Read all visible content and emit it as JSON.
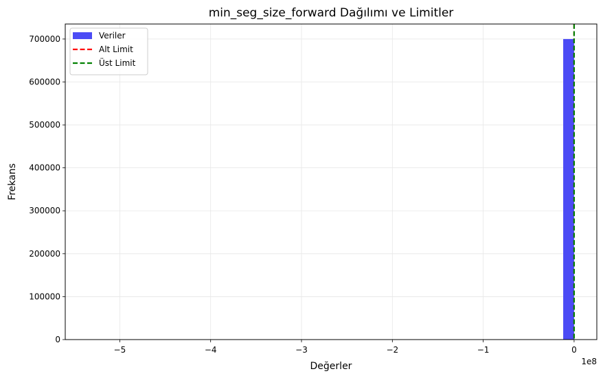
{
  "chart_data": {
    "type": "bar",
    "title": "min_seg_size_forward Dağılımı ve Limitler",
    "xlabel": "Değerler",
    "ylabel": "Frekans",
    "x_offset_label": "1e8",
    "xlim": [
      -5.6,
      0.25
    ],
    "ylim": [
      0,
      735000
    ],
    "x_ticks": [
      -5,
      -4,
      -3,
      -2,
      -1,
      0
    ],
    "x_tick_labels": [
      "−5",
      "−4",
      "−3",
      "−2",
      "−1",
      "0"
    ],
    "y_ticks": [
      0,
      100000,
      200000,
      300000,
      400000,
      500000,
      600000,
      700000
    ],
    "y_tick_labels": [
      "0",
      "100000",
      "200000",
      "300000",
      "400000",
      "500000",
      "600000",
      "700000"
    ],
    "grid": true,
    "bars": [
      {
        "x0": -0.12,
        "x1": 0.0,
        "value": 700000
      }
    ],
    "lines": [
      {
        "name": "Alt Limit",
        "x": 0.0,
        "color": "#ff0000",
        "style": "dashed"
      },
      {
        "name": "Üst Limit",
        "x": 0.0,
        "color": "#008000",
        "style": "dashed"
      }
    ],
    "legend": {
      "position": "top-left",
      "entries": [
        {
          "label": "Veriler",
          "kind": "patch",
          "color": "#4b4bf5"
        },
        {
          "label": "Alt Limit",
          "kind": "dashed-line",
          "color": "#ff0000"
        },
        {
          "label": "Üst Limit",
          "kind": "dashed-line",
          "color": "#008000"
        }
      ]
    }
  }
}
